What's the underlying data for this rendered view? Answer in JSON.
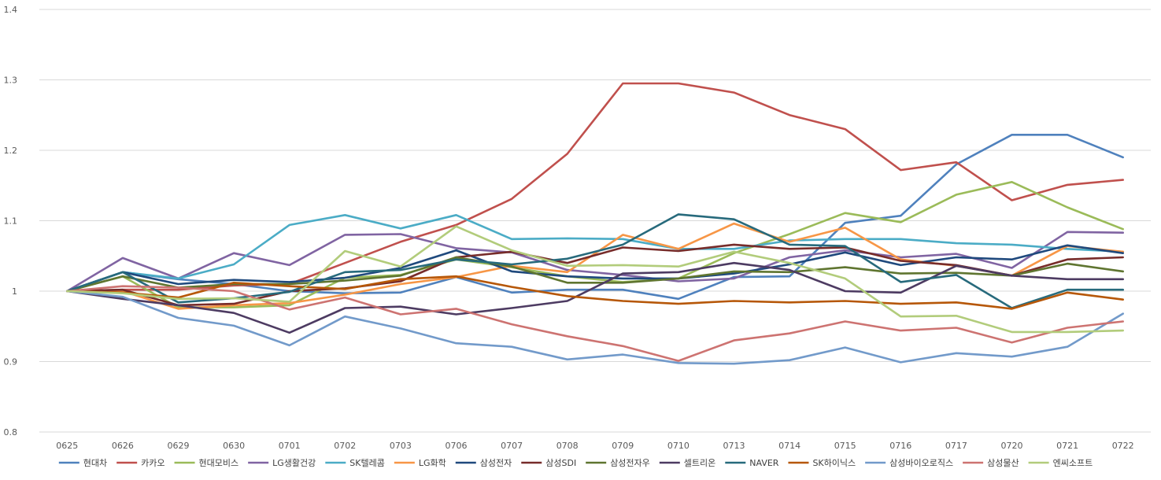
{
  "chart_data": {
    "type": "line",
    "title": "",
    "xlabel": "",
    "ylabel": "",
    "ylim": [
      0.8,
      1.4
    ],
    "yticks": [
      "0.8",
      "0.9",
      "1",
      "1.1",
      "1.2",
      "1.3",
      "1.4"
    ],
    "ytick_values": [
      0.8,
      0.9,
      1.0,
      1.1,
      1.2,
      1.3,
      1.4
    ],
    "grid": true,
    "legend_position": "bottom",
    "categories": [
      "0625",
      "0626",
      "0629",
      "0630",
      "0701",
      "0702",
      "0703",
      "0706",
      "0707",
      "0708",
      "0709",
      "0710",
      "0713",
      "0714",
      "0715",
      "0716",
      "0717",
      "0720",
      "0721",
      "0722"
    ],
    "series": [
      {
        "name": "현대차",
        "color": "#4f81bd",
        "values": [
          1,
          1.027,
          1.017,
          1.01,
          1.0,
          0.997,
          0.998,
          1.02,
          0.998,
          1.002,
          1.002,
          0.989,
          1.02,
          1.021,
          1.097,
          1.107,
          1.18,
          1.222,
          1.222,
          1.19
        ]
      },
      {
        "name": "카카오",
        "color": "#c0504d",
        "values": [
          1,
          1.002,
          1.002,
          1.008,
          1.01,
          1.04,
          1.07,
          1.094,
          1.131,
          1.195,
          1.295,
          1.295,
          1.282,
          1.25,
          1.23,
          1.172,
          1.183,
          1.129,
          1.151,
          1.158
        ]
      },
      {
        "name": "현대모비스",
        "color": "#9bbb59",
        "values": [
          1,
          1.021,
          0.977,
          0.977,
          0.98,
          1.019,
          1.023,
          1.045,
          1.034,
          1.021,
          1.013,
          1.018,
          1.054,
          1.081,
          1.111,
          1.098,
          1.137,
          1.155,
          1.119,
          1.088
        ]
      },
      {
        "name": "LG생활건강",
        "color": "#8064a2",
        "values": [
          1,
          1.047,
          1.018,
          1.054,
          1.037,
          1.08,
          1.081,
          1.061,
          1.055,
          1.03,
          1.023,
          1.014,
          1.018,
          1.048,
          1.058,
          1.048,
          1.053,
          1.033,
          1.084,
          1.083
        ]
      },
      {
        "name": "SK텔레콤",
        "color": "#4bacc6",
        "values": [
          1,
          1.027,
          1.018,
          1.038,
          1.094,
          1.108,
          1.089,
          1.108,
          1.074,
          1.075,
          1.074,
          1.06,
          1.06,
          1.072,
          1.074,
          1.074,
          1.068,
          1.066,
          1.06,
          1.056
        ]
      },
      {
        "name": "LG화학",
        "color": "#f79646",
        "values": [
          1,
          1.0,
          0.975,
          0.98,
          0.983,
          0.995,
          1.01,
          1.02,
          1.036,
          1.027,
          1.08,
          1.06,
          1.096,
          1.07,
          1.09,
          1.045,
          1.036,
          1.022,
          1.064,
          1.056
        ]
      },
      {
        "name": "삼성전자",
        "color": "#1f497d",
        "values": [
          1,
          1.027,
          1.01,
          1.016,
          1.013,
          1.019,
          1.033,
          1.058,
          1.028,
          1.021,
          1.018,
          1.018,
          1.025,
          1.038,
          1.055,
          1.037,
          1.048,
          1.045,
          1.065,
          1.054
        ]
      },
      {
        "name": "삼성SDI",
        "color": "#772c2a",
        "values": [
          1,
          1.002,
          0.98,
          0.982,
          1.0,
          1.004,
          1.014,
          1.048,
          1.056,
          1.04,
          1.062,
          1.057,
          1.066,
          1.06,
          1.062,
          1.043,
          1.037,
          1.022,
          1.045,
          1.048
        ]
      },
      {
        "name": "삼성전자우",
        "color": "#5f7530",
        "values": [
          1,
          1.021,
          1.005,
          1.01,
          1.01,
          1.015,
          1.022,
          1.048,
          1.035,
          1.012,
          1.012,
          1.018,
          1.028,
          1.027,
          1.034,
          1.025,
          1.026,
          1.022,
          1.039,
          1.028
        ]
      },
      {
        "name": "셀트리온",
        "color": "#4d3b62",
        "values": [
          1,
          0.989,
          0.98,
          0.969,
          0.941,
          0.976,
          0.978,
          0.967,
          0.976,
          0.986,
          1.025,
          1.027,
          1.04,
          1.03,
          1.0,
          0.998,
          1.036,
          1.022,
          1.017,
          1.017
        ]
      },
      {
        "name": "NAVER",
        "color": "#276a7c",
        "values": [
          1,
          1.027,
          0.984,
          0.99,
          0.999,
          1.027,
          1.03,
          1.045,
          1.038,
          1.046,
          1.066,
          1.109,
          1.102,
          1.066,
          1.064,
          1.013,
          1.023,
          0.976,
          1.002,
          1.002
        ]
      },
      {
        "name": "SK하이닉스",
        "color": "#b65708",
        "values": [
          1,
          0.998,
          0.991,
          1.012,
          1.007,
          1.003,
          1.017,
          1.021,
          1.006,
          0.993,
          0.986,
          0.982,
          0.986,
          0.984,
          0.986,
          0.982,
          0.984,
          0.975,
          0.998,
          0.988
        ]
      },
      {
        "name": "삼성바이오로직스",
        "color": "#729aca",
        "values": [
          1,
          0.992,
          0.962,
          0.951,
          0.923,
          0.964,
          0.947,
          0.926,
          0.921,
          0.903,
          0.91,
          0.898,
          0.897,
          0.902,
          0.92,
          0.899,
          0.912,
          0.907,
          0.921,
          0.968
        ]
      },
      {
        "name": "삼성물산",
        "color": "#cd7371",
        "values": [
          1,
          1.007,
          1.005,
          1.0,
          0.974,
          0.991,
          0.967,
          0.975,
          0.953,
          0.936,
          0.922,
          0.901,
          0.93,
          0.94,
          0.957,
          0.944,
          0.948,
          0.927,
          0.948,
          0.957
        ]
      },
      {
        "name": "엔씨소프트",
        "color": "#b2cc7b",
        "values": [
          1,
          0.997,
          0.989,
          0.99,
          0.985,
          1.057,
          1.035,
          1.092,
          1.058,
          1.036,
          1.037,
          1.035,
          1.056,
          1.04,
          1.018,
          0.964,
          0.965,
          0.942,
          0.942,
          0.944
        ]
      }
    ]
  }
}
